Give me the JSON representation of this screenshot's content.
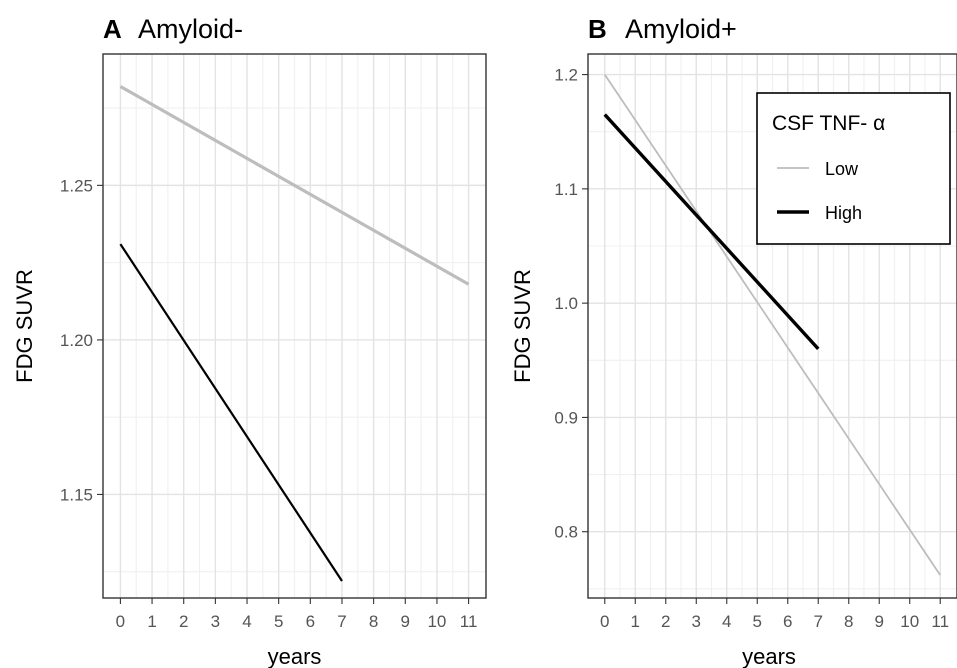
{
  "chart_data": [
    {
      "type": "line",
      "panel_letter": "A",
      "title": "Amyloid-",
      "xlabel": "years",
      "ylabel": "FDG SUVR",
      "x_ticks": [
        0,
        1,
        2,
        3,
        4,
        5,
        6,
        7,
        8,
        9,
        10,
        11
      ],
      "y_ticks": [
        "1.15",
        "1.20",
        "1.25"
      ],
      "xlim": [
        -0.55,
        11.55
      ],
      "ylim": [
        1.1165,
        1.2925
      ],
      "grid": true,
      "series": [
        {
          "group": "Low",
          "color": "#bdbdbd",
          "x": [
            0,
            11
          ],
          "y": [
            1.282,
            1.218
          ]
        },
        {
          "group": "High",
          "color": "#000000",
          "x": [
            0,
            7
          ],
          "y": [
            1.231,
            1.122
          ]
        }
      ]
    },
    {
      "type": "line",
      "panel_letter": "B",
      "title": "Amyloid+",
      "xlabel": "years",
      "ylabel": "FDG SUVR",
      "x_ticks": [
        0,
        1,
        2,
        3,
        4,
        5,
        6,
        7,
        8,
        9,
        10,
        11
      ],
      "y_ticks": [
        "0.8",
        "0.9",
        "1.0",
        "1.1",
        "1.2"
      ],
      "xlim": [
        -0.55,
        11.55
      ],
      "ylim": [
        0.742,
        1.218
      ],
      "grid": true,
      "legend": {
        "title": "CSF TNF- α",
        "placement": "top-right",
        "entries": [
          {
            "label": "Low",
            "color": "#bdbdbd"
          },
          {
            "label": "High",
            "color": "#000000"
          }
        ]
      },
      "series": [
        {
          "name": "Low",
          "color": "#bdbdbd",
          "x": [
            0,
            11
          ],
          "y": [
            1.2,
            0.762
          ]
        },
        {
          "name": "High",
          "color": "#000000",
          "x": [
            0,
            7
          ],
          "y": [
            1.165,
            0.96
          ]
        }
      ]
    }
  ]
}
